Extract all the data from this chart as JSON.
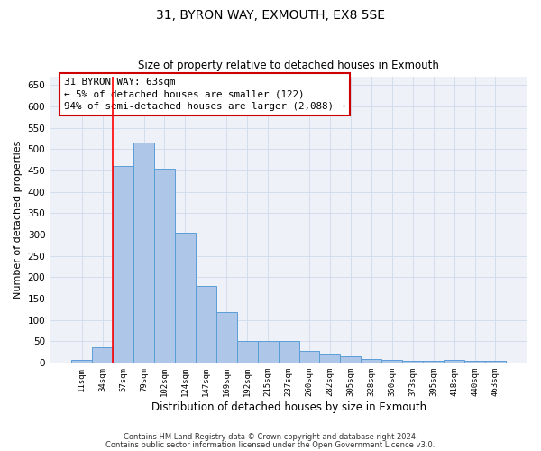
{
  "title1": "31, BYRON WAY, EXMOUTH, EX8 5SE",
  "title2": "Size of property relative to detached houses in Exmouth",
  "xlabel": "Distribution of detached houses by size in Exmouth",
  "ylabel": "Number of detached properties",
  "categories": [
    "11sqm",
    "34sqm",
    "57sqm",
    "79sqm",
    "102sqm",
    "124sqm",
    "147sqm",
    "169sqm",
    "192sqm",
    "215sqm",
    "237sqm",
    "260sqm",
    "282sqm",
    "305sqm",
    "328sqm",
    "350sqm",
    "373sqm",
    "395sqm",
    "418sqm",
    "440sqm",
    "463sqm"
  ],
  "values": [
    5,
    35,
    460,
    515,
    455,
    305,
    180,
    118,
    50,
    50,
    50,
    28,
    18,
    14,
    8,
    5,
    4,
    3,
    5,
    3,
    3
  ],
  "bar_color": "#aec6e8",
  "bar_edge_color": "#5a9ed6",
  "red_line_x": 1.5,
  "annotation_text": "31 BYRON WAY: 63sqm\n← 5% of detached houses are smaller (122)\n94% of semi-detached houses are larger (2,088) →",
  "annotation_box_color": "#ffffff",
  "annotation_box_edge_color": "#cc0000",
  "grid_color": "#d0daea",
  "background_color": "#eef2f8",
  "ylim": [
    0,
    670
  ],
  "yticks": [
    0,
    50,
    100,
    150,
    200,
    250,
    300,
    350,
    400,
    450,
    500,
    550,
    600,
    650
  ],
  "footer1": "Contains HM Land Registry data © Crown copyright and database right 2024.",
  "footer2": "Contains public sector information licensed under the Open Government Licence v3.0."
}
